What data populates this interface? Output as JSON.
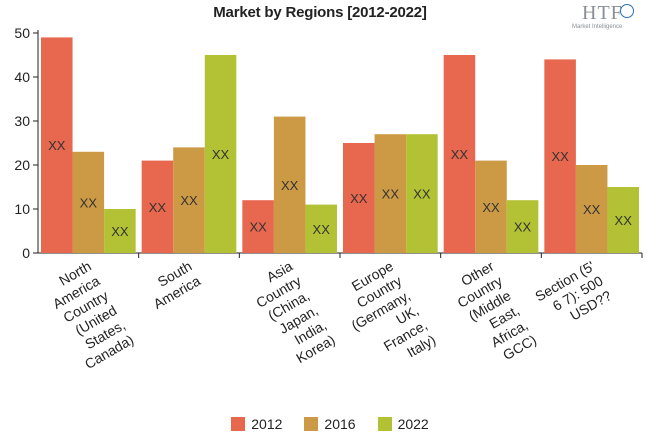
{
  "title": "Market by Regions [2012-2022]",
  "logo": {
    "main": "HTF",
    "sub": "Market Intelligence"
  },
  "chart_data": {
    "type": "bar",
    "title": "Market by Regions [2012-2022]",
    "xlabel": "",
    "ylabel": "",
    "ylim": [
      0,
      50
    ],
    "yticks": [
      0,
      10,
      20,
      30,
      40,
      50
    ],
    "grid": false,
    "legend_position": "bottom",
    "categories": [
      [
        "North",
        "America",
        "Country",
        "(United",
        "States,",
        "Canada)"
      ],
      [
        "South",
        "America"
      ],
      [
        "Asia",
        "Country",
        "(China,",
        "Japan,",
        "India,",
        "Korea)"
      ],
      [
        "Europe",
        "Country",
        "(Germany,",
        "UK,",
        "France,",
        "Italy)"
      ],
      [
        "Other",
        "Country",
        "(Middle",
        "East,",
        "Africa,",
        "GCC)"
      ],
      [
        "Section (5'",
        "6 7): 500",
        "USD??"
      ]
    ],
    "data_label": "XX",
    "series": [
      {
        "name": "2012",
        "color": "#e8674f",
        "values": [
          49,
          21,
          12,
          25,
          45,
          44
        ]
      },
      {
        "name": "2016",
        "color": "#cc9a45",
        "values": [
          23,
          24,
          31,
          27,
          21,
          20
        ]
      },
      {
        "name": "2022",
        "color": "#b2c234",
        "values": [
          10,
          45,
          11,
          27,
          12,
          15
        ]
      }
    ]
  }
}
